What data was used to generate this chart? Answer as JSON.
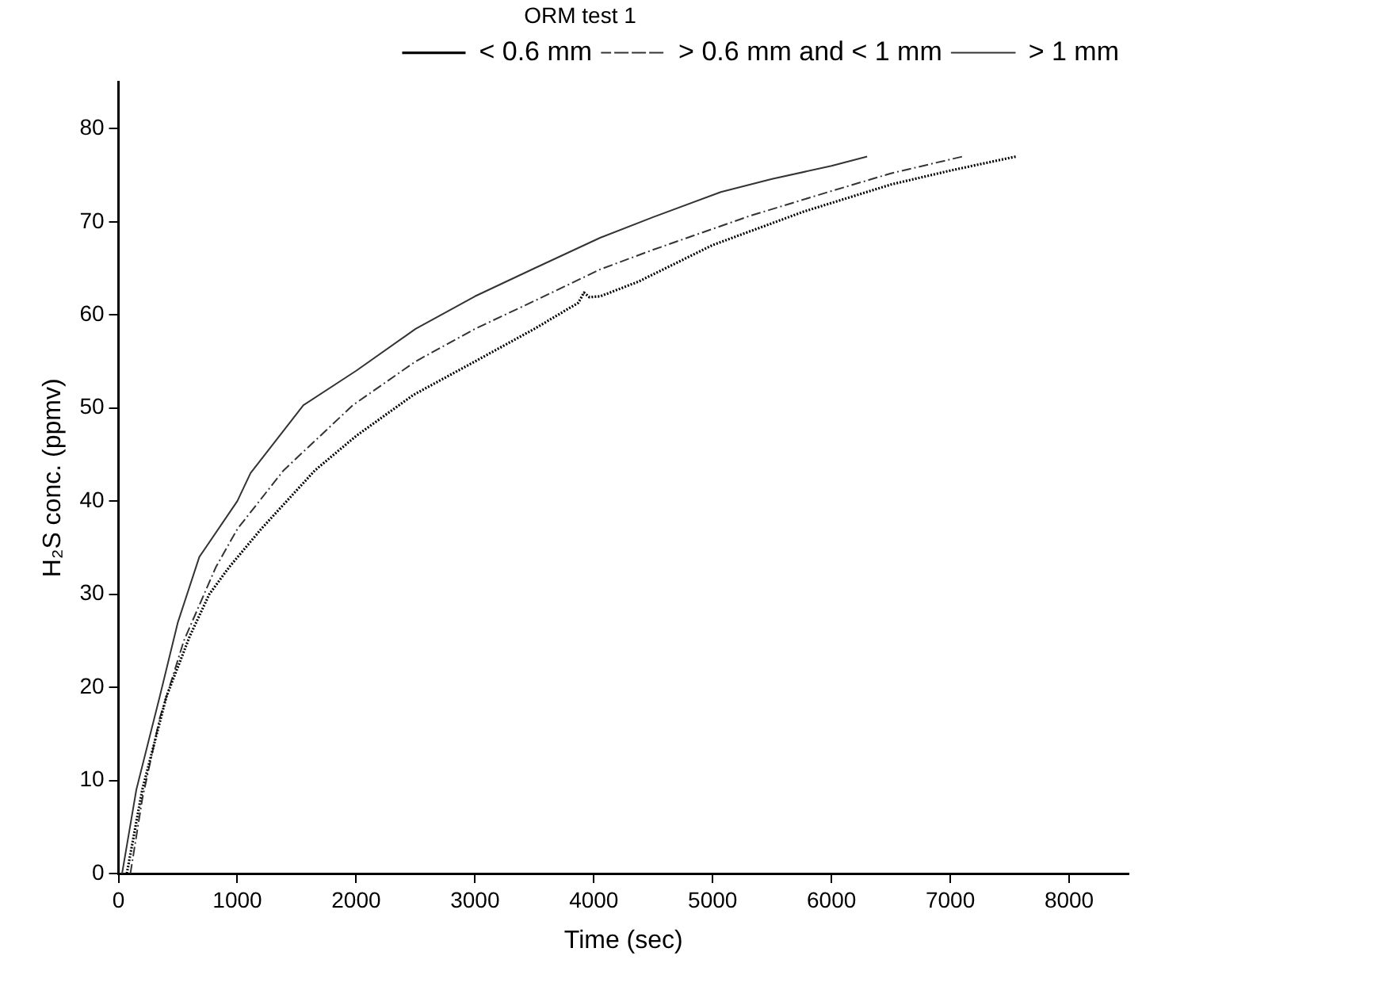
{
  "chart_data": {
    "type": "line",
    "title": "ORM test 1",
    "xlabel": "Time (sec)",
    "ylabel": "H₂S conc. (ppmv)",
    "xlim": [
      0,
      8500
    ],
    "xticks": [
      0,
      1000,
      2000,
      3000,
      4000,
      5000,
      6000,
      7000,
      8000
    ],
    "ylim": [
      0,
      85
    ],
    "yticks": [
      0,
      10,
      20,
      30,
      40,
      50,
      60,
      70,
      80
    ],
    "grid": false,
    "legend": "top right",
    "marker": "none",
    "series": [
      {
        "name": "< 0.6 mm",
        "color": "#000000",
        "line_style": "dotted",
        "x": [
          70,
          200,
          403,
          600,
          764,
          931,
          1200,
          1653,
          2000,
          2481,
          3000,
          3500,
          3870,
          3917,
          3963,
          4056,
          4380,
          5000,
          5768,
          6500,
          7000,
          7550
        ],
        "values": [
          0,
          9,
          19,
          25.5,
          30,
          32.9,
          37,
          43.3,
          47,
          51.4,
          55,
          58.5,
          61.3,
          62.4,
          61.9,
          62,
          63.6,
          67.5,
          71.1,
          74,
          75.5,
          77
        ]
      },
      {
        "name": "> 0.6 mm and < 1 mm",
        "color": "#333333",
        "line_style": "dashed",
        "x": [
          100,
          200,
          347,
          550,
          819,
          1000,
          1389,
          1972,
          2500,
          3000,
          3500,
          4056,
          4500,
          5306,
          6000,
          6500,
          7100
        ],
        "values": [
          0,
          8,
          16.7,
          25,
          32.9,
          37,
          43.3,
          50.3,
          55,
          58.5,
          61.5,
          64.9,
          67,
          70.6,
          73.3,
          75.2,
          77
        ]
      },
      {
        "name": "> 1 mm",
        "color": "#333333",
        "line_style": "solid",
        "x": [
          30,
          150,
          347,
          500,
          680,
          1000,
          1111,
          1556,
          2000,
          2500,
          3000,
          3500,
          4056,
          4500,
          5069,
          5500,
          6000,
          6300
        ],
        "values": [
          0,
          9,
          19,
          27,
          34,
          40,
          43,
          50.3,
          54,
          58.5,
          62,
          65,
          68.3,
          70.5,
          73.2,
          74.6,
          76,
          77
        ]
      }
    ]
  }
}
